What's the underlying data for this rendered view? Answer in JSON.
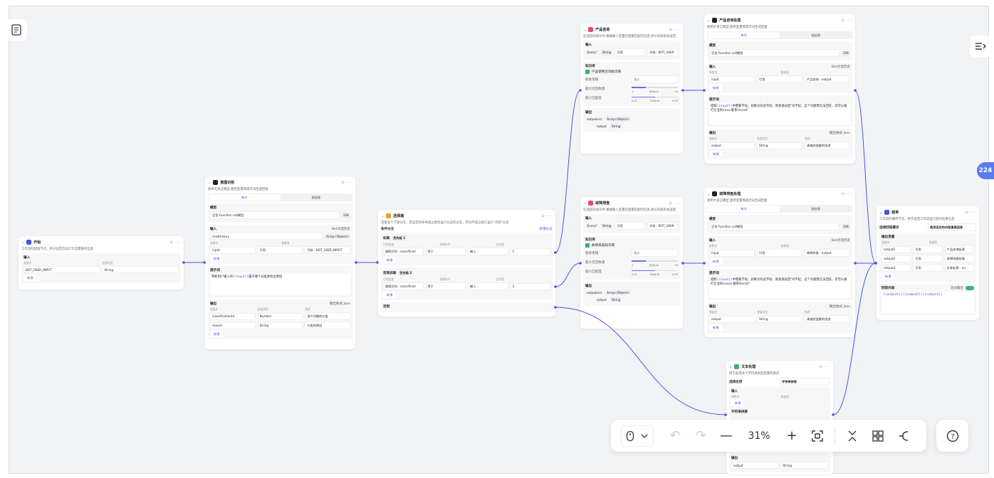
{
  "accent": "#4d53e8",
  "toolbar": {
    "zoom": "31%",
    "icons": [
      "mouse-icon",
      "chevron-down-icon",
      "undo-icon",
      "redo-icon",
      "zoom-out-icon",
      "zoom-in-icon",
      "fit-view-icon",
      "collapse-icon",
      "layout-icon",
      "branch-icon",
      "help-icon"
    ]
  },
  "badge": "224",
  "nodes": [
    {
      "id": "start",
      "color": "#4d53e8",
      "title": "开始",
      "desc": "工作流的起始节点，用于设定启动工作流需要的信息",
      "sections": [
        {
          "title": "输入",
          "header": [
            "变量名",
            "变量类型"
          ],
          "rows": [
            [
              "BOT_USER_INPUT",
              "String"
            ]
          ],
          "add": "新增"
        }
      ]
    },
    {
      "id": "intent",
      "color": "#222",
      "title": "意图识别",
      "desc": "调用大语言模型,使用变量和提示词生成回复",
      "tabs": [
        "单次",
        "批处理"
      ],
      "sections": [
        {
          "title": "模型",
          "rows": [
            [
              "豆包·Function call模型",
              "32K"
            ]
          ]
        },
        {
          "title": "输入",
          "right": "Bot对话历史",
          "rows": [
            [
              "chatHistory",
              "Array<Object>"
            ]
          ],
          "header": [
            "参数名",
            "变量值"
          ],
          "rows2": [
            [
              "input",
              "引用",
              "开始 - BOT_USER_INPUT"
            ]
          ],
          "add": "新增"
        },
        {
          "title": "提示词",
          "prompt": [
            "判断用户输入的",
            "{{input}}",
            "属于哪个分类并给出原因"
          ]
        },
        {
          "title": "输出",
          "right": "输出格式 Json",
          "header": [
            "变量名",
            "变量类型",
            "描述"
          ],
          "rows": [
            [
              "classificationId",
              "Number",
              "用户问题的分类"
            ],
            [
              "reason",
              "String",
              "分类的原因"
            ]
          ],
          "add": "新增"
        }
      ]
    },
    {
      "id": "selector",
      "color": "#f0a020",
      "title": "选择器",
      "desc": "连接多个下游分支，若设定的条件成立则仅运行对应的分支，若均不成立则只运行\"否则\"分支",
      "branch_title": "条件分支",
      "branch_add": "新增分支",
      "sections": [
        {
          "title": "如果",
          "tag": "优先级 1",
          "header": [
            "引用变量",
            "选择条件",
            "比较值"
          ],
          "rows": [
            [
              "意图识别 - classificati",
              "等于",
              "输入",
              "1"
            ]
          ],
          "add": "新增"
        },
        {
          "title": "否则如果",
          "tag": "优先级 2",
          "header": [
            "引用变量",
            "选择条件",
            "比较值"
          ],
          "rows": [
            [
              "意图识别 - classificati",
              "等于",
              "输入",
              "2"
            ]
          ],
          "add": "新增"
        },
        {
          "title": "否则"
        }
      ]
    },
    {
      "id": "product-kb",
      "color": "#e0506a",
      "title": "产品咨询",
      "desc": "在选定的知识中,根据输入变量召回最匹配的信息,并以列表形式返回",
      "kb": {
        "input": [
          "Query*",
          "String",
          "引用",
          "开始 - BOT_USER"
        ],
        "kb_name": "产品使用咨询知识库",
        "mode_label": "搜索策略",
        "mode": "语义",
        "topk_label": "最大召回数量",
        "topk": [
          1,
          "Default",
          10
        ],
        "topk_val": 3,
        "min_label": "最小匹配度",
        "min": [
          0.01,
          "Default",
          0.99
        ],
        "min_val": 0.5,
        "out": [
          "outputList",
          "Array<Object>"
        ],
        "out_child": [
          "output",
          "String"
        ]
      }
    },
    {
      "id": "product-llm",
      "color": "#222",
      "title": "产品咨询处理",
      "desc": "调用大语言模型,使用变量和提示词生成回复",
      "tabs": [
        "单次",
        "批处理"
      ],
      "sections": [
        {
          "title": "模型",
          "rows": [
            [
              "豆包·Function call模型",
              "32K"
            ]
          ]
        },
        {
          "title": "输入",
          "right": "Bot对话历史",
          "header": [
            "参数名",
            "变量值"
          ],
          "rows": [
            [
              "input",
              "引用",
              "产品咨询 - output"
            ]
          ],
          "add": "新增"
        },
        {
          "title": "提示词",
          "prompt": [
            "提取",
            "{{input}}",
            "中需要字段。如果没有此字段，则直接返回\"对不起，这个问题我无法回答，您可以拨打企业的xxxx-联系Oncall\""
          ]
        },
        {
          "title": "输出",
          "right": "输出格式 Json",
          "header": [
            "变量名",
            "变量类型",
            "描述"
          ],
          "rows": [
            [
              "output",
              "String",
              "请描述变量的用途"
            ]
          ],
          "add": "新增"
        }
      ]
    },
    {
      "id": "fault-kb",
      "color": "#e0506a",
      "title": "故障排查",
      "desc": "在选定的知识中,根据输入变量召回最匹配的信息,并以列表形式返回",
      "kb": {
        "input": [
          "Query*",
          "String",
          "引用",
          "开始 - BOT_USER"
        ],
        "kb_name": "故障排查知识库",
        "mode_label": "搜索策略",
        "mode": "语义",
        "topk_label": "最大召回数量",
        "topk": [
          1,
          "Default",
          10
        ],
        "topk_val": 3,
        "min_label": "最小匹配度",
        "min": [
          0.01,
          "Default",
          0.99
        ],
        "min_val": 0.5,
        "out": [
          "outputList",
          "Array<Object>"
        ],
        "out_child": [
          "output",
          "String"
        ]
      }
    },
    {
      "id": "fault-llm",
      "color": "#222",
      "title": "故障排查处理",
      "desc": "调用大语言模型,使用变量和提示词生成回复",
      "tabs": [
        "单次",
        "批处理"
      ],
      "sections": [
        {
          "title": "模型",
          "rows": [
            [
              "豆包·Function call模型",
              "32K"
            ]
          ]
        },
        {
          "title": "输入",
          "right": "Bot对话历史",
          "header": [
            "参数名",
            "变量值"
          ],
          "rows": [
            [
              "input",
              "引用",
              "故障排查 - output"
            ]
          ],
          "add": "新增"
        },
        {
          "title": "提示词",
          "prompt": [
            "提取",
            "{{input}}",
            "中需要字段。如果没有此字段，则直接返回\"对不起，这个问题我无法回答，您可以拨打企业的xxxxx-联系Oncall\""
          ]
        },
        {
          "title": "输出",
          "right": "输出格式 Json",
          "header": [
            "变量名",
            "变量类型",
            "描述"
          ],
          "rows": [
            [
              "output",
              "String",
              "请描述变量的用途"
            ]
          ],
          "add": "新增"
        }
      ]
    },
    {
      "id": "text",
      "color": "#3cb371",
      "title": "文本处理",
      "desc": "用于处理多个字符串类型变量的格式",
      "select_label": "选择应用",
      "select_value": "字符串拼接",
      "sections": [
        {
          "title": "输入",
          "header": [
            "参数名",
            "变量值"
          ],
          "rows": [],
          "add": "新增"
        },
        {
          "title": "字符串拼接",
          "rows": []
        },
        {
          "title": "输出",
          "rows": [
            [
              "output",
              "String"
            ]
          ]
        }
      ]
    },
    {
      "id": "end",
      "color": "#4d53e8",
      "title": "结束",
      "desc": "工作流的最终节点，用于返回工作流运行后的结果信息",
      "select_label": "选择回答模式",
      "select_value": "使用设定的内容直接回答",
      "sections": [
        {
          "title": "输出变量",
          "header": [
            "变量名",
            "变量值"
          ],
          "rows": [
            [
              "output1",
              "引用",
              "产品咨询处理"
            ],
            [
              "output2",
              "引用",
              "故障排查处理"
            ],
            [
              "output3",
              "引用",
              "文本处理 - ou"
            ]
          ],
          "add": "新增"
        },
        {
          "title": "回答内容",
          "right": "流式输出",
          "toggle": true,
          "answer": "{{output1}}{{output2}}{{output3}}"
        }
      ]
    }
  ]
}
